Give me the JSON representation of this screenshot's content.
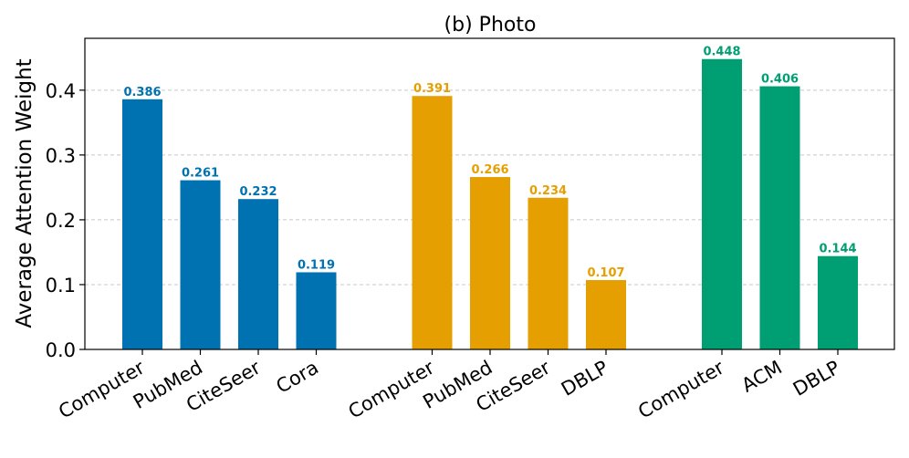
{
  "chart_data": {
    "type": "bar",
    "title": "(b) Photo",
    "ylabel": "Average Attention Weight",
    "xlabel": "",
    "ylim": [
      0,
      0.48
    ],
    "yticks": [
      0.0,
      0.1,
      0.2,
      0.3,
      0.4
    ],
    "ytick_labels": [
      "0.0",
      "0.1",
      "0.2",
      "0.3",
      "0.4"
    ],
    "grid": "y-dashed",
    "groups": [
      {
        "color": "#0072B2",
        "categories": [
          "Computer",
          "PubMed",
          "CiteSeer",
          "Cora"
        ],
        "values": [
          0.386,
          0.261,
          0.232,
          0.119
        ],
        "labels": [
          "0.386",
          "0.261",
          "0.232",
          "0.119"
        ]
      },
      {
        "color": "#E69F00",
        "categories": [
          "Computer",
          "PubMed",
          "CiteSeer",
          "DBLP"
        ],
        "values": [
          0.391,
          0.266,
          0.234,
          0.107
        ],
        "labels": [
          "0.391",
          "0.266",
          "0.234",
          "0.107"
        ]
      },
      {
        "color": "#009E73",
        "categories": [
          "Computer",
          "ACM",
          "DBLP"
        ],
        "values": [
          0.448,
          0.406,
          0.144
        ],
        "labels": [
          "0.448",
          "0.406",
          "0.144"
        ]
      }
    ]
  }
}
